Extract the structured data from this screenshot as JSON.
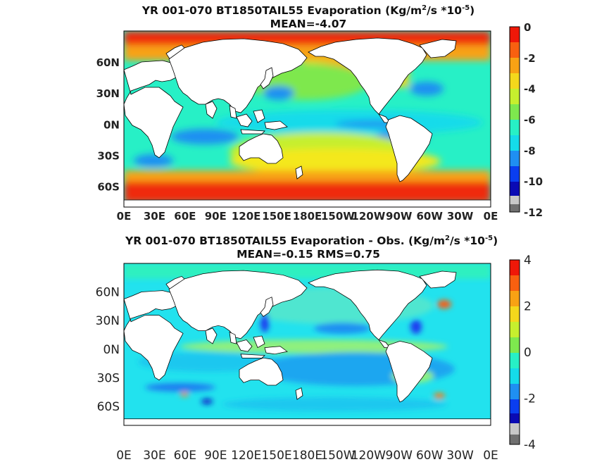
{
  "chart_data": [
    {
      "type": "heatmap",
      "title": "YR 001-070 BT1850TAIL55  Evaporation (Kg/m²/s *10⁻⁵)",
      "subtitle": "MEAN=-4.07",
      "title_parts": [
        "YR 001-070 BT1850TAIL55  Evaporation (Kg/m",
        "2",
        "/s *10",
        "-5",
        ")"
      ],
      "x_ticks": [
        "0E",
        "30E",
        "60E",
        "90E",
        "120E",
        "150E",
        "180E",
        "150W",
        "120W",
        "90W",
        "60W",
        "30W",
        "0E"
      ],
      "y_ticks": [
        "60N",
        "30N",
        "0N",
        "30S",
        "60S"
      ],
      "y_values": [
        60,
        30,
        0,
        -30,
        -60
      ],
      "lon_range": [
        0,
        360
      ],
      "lat_range": [
        -80,
        90
      ],
      "colorbar": {
        "ticks": [
          "0",
          "-2",
          "-4",
          "-6",
          "-8",
          "-10",
          "-12"
        ],
        "values": [
          0,
          -2,
          -4,
          -6,
          -8,
          -10,
          -12
        ],
        "range": [
          -12,
          0
        ]
      },
      "tick_style": "bold"
    },
    {
      "type": "heatmap",
      "title": "YR 001-070 BT1850TAIL55 Evaporation - Obs. (Kg/m²/s *10⁻⁵)",
      "subtitle": "MEAN=-0.15   RMS=0.75",
      "title_parts": [
        "YR 001-070 BT1850TAIL55 Evaporation - Obs. (Kg/m",
        "2",
        "/s *10",
        "-5",
        ")"
      ],
      "x_ticks": [
        "0E",
        "30E",
        "60E",
        "90E",
        "120E",
        "150E",
        "180E",
        "150W",
        "120W",
        "90W",
        "60W",
        "30W",
        "0E"
      ],
      "y_ticks": [
        "60N",
        "30N",
        "0N",
        "30S",
        "60S"
      ],
      "y_values": [
        60,
        30,
        0,
        -30,
        -60
      ],
      "lon_range": [
        0,
        360
      ],
      "lat_range": [
        -80,
        90
      ],
      "colorbar": {
        "ticks": [
          "4",
          "2",
          "0",
          "-2",
          "-4"
        ],
        "values": [
          4,
          2,
          0,
          -2,
          -4
        ],
        "range": [
          -4,
          4
        ]
      },
      "tick_style": "normal"
    }
  ]
}
